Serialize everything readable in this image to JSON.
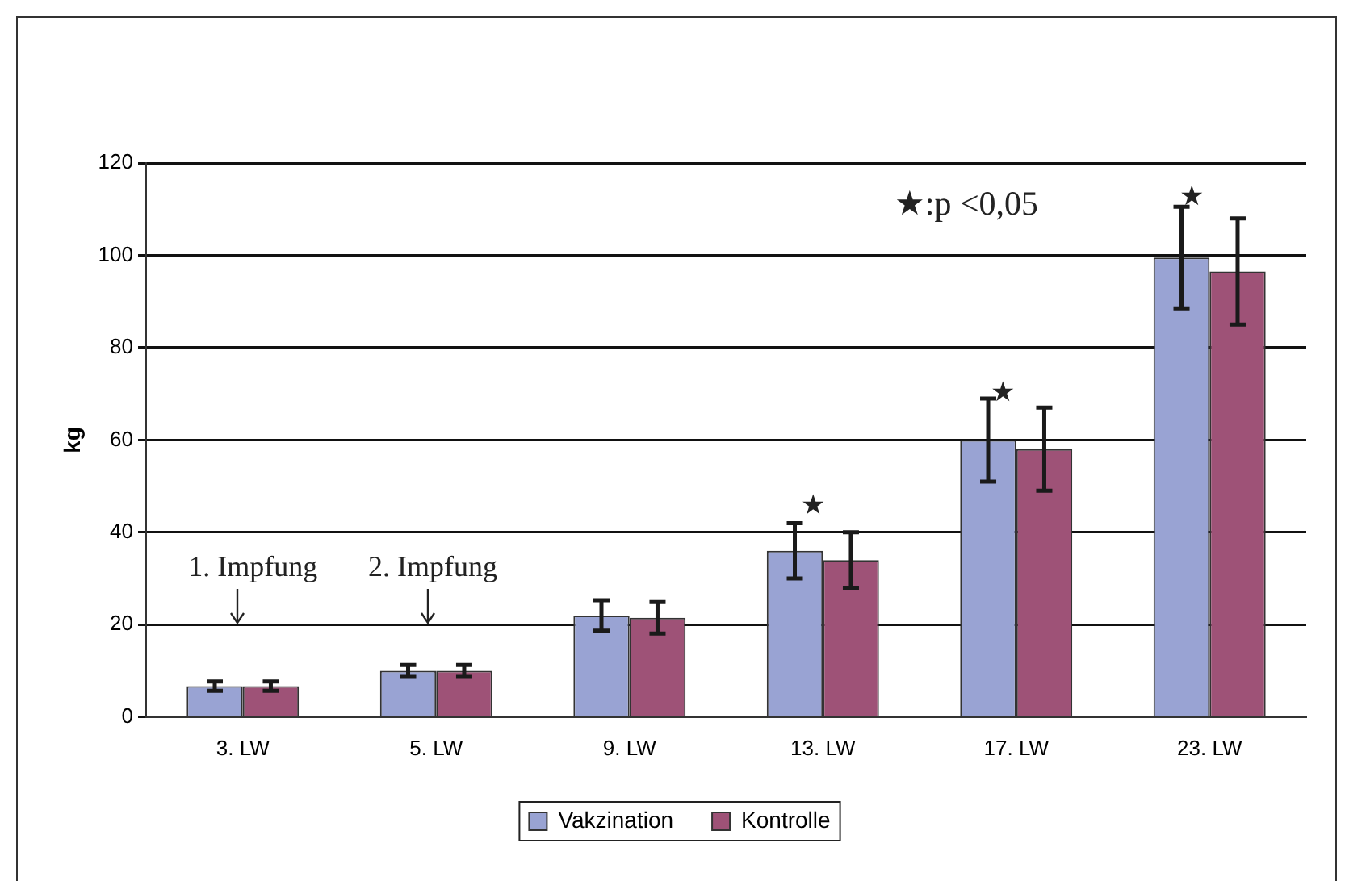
{
  "chart_data": {
    "type": "bar",
    "ylabel": "kg",
    "categories": [
      "3. LW",
      "5. LW",
      "9. LW",
      "13. LW",
      "17. LW",
      "23. LW"
    ],
    "series": [
      {
        "name": "Vakzination",
        "color": "#99a3d3",
        "values": [
          6.7,
          10,
          22,
          36,
          60,
          99.5
        ],
        "errors": [
          1,
          1.3,
          3.3,
          6,
          9,
          11
        ]
      },
      {
        "name": "Kontrolle",
        "color": "#9e5277",
        "values": [
          6.7,
          10,
          21.5,
          34,
          58,
          96.5
        ],
        "errors": [
          1,
          1.3,
          3.4,
          6,
          9,
          11.5
        ]
      }
    ],
    "ylim": [
      0,
      120
    ],
    "yticks": [
      0,
      20,
      40,
      60,
      80,
      100,
      120
    ],
    "grid": "y",
    "legend": "bottom",
    "annotations": [
      "1. Impfung",
      "2. Impfung",
      "★",
      "★",
      "★",
      "★:p <0,05"
    ]
  }
}
